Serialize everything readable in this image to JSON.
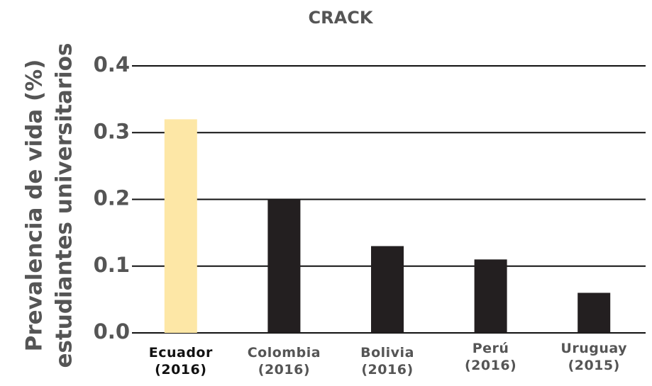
{
  "chart_data": {
    "type": "bar",
    "title": "CRACK",
    "y_label": [
      "Prevalencia de vida (%)",
      "estudiantes universitarios"
    ],
    "categories": [
      "Ecuador (2016)",
      "Colombia (2016)",
      "Bolivia (2016)",
      "Perú (2016)",
      "Uruguay (2015)"
    ],
    "values": [
      0.32,
      0.2,
      0.13,
      0.11,
      0.06
    ],
    "colors": [
      "#fde7a6",
      "#231f20",
      "#231f20",
      "#231f20",
      "#231f20"
    ],
    "ylim": [
      0,
      0.4
    ],
    "yticks": [
      {
        "value": 0,
        "label": "0.0"
      },
      0.1,
      0.2,
      0.3,
      0.4
    ],
    "grid": true
  }
}
